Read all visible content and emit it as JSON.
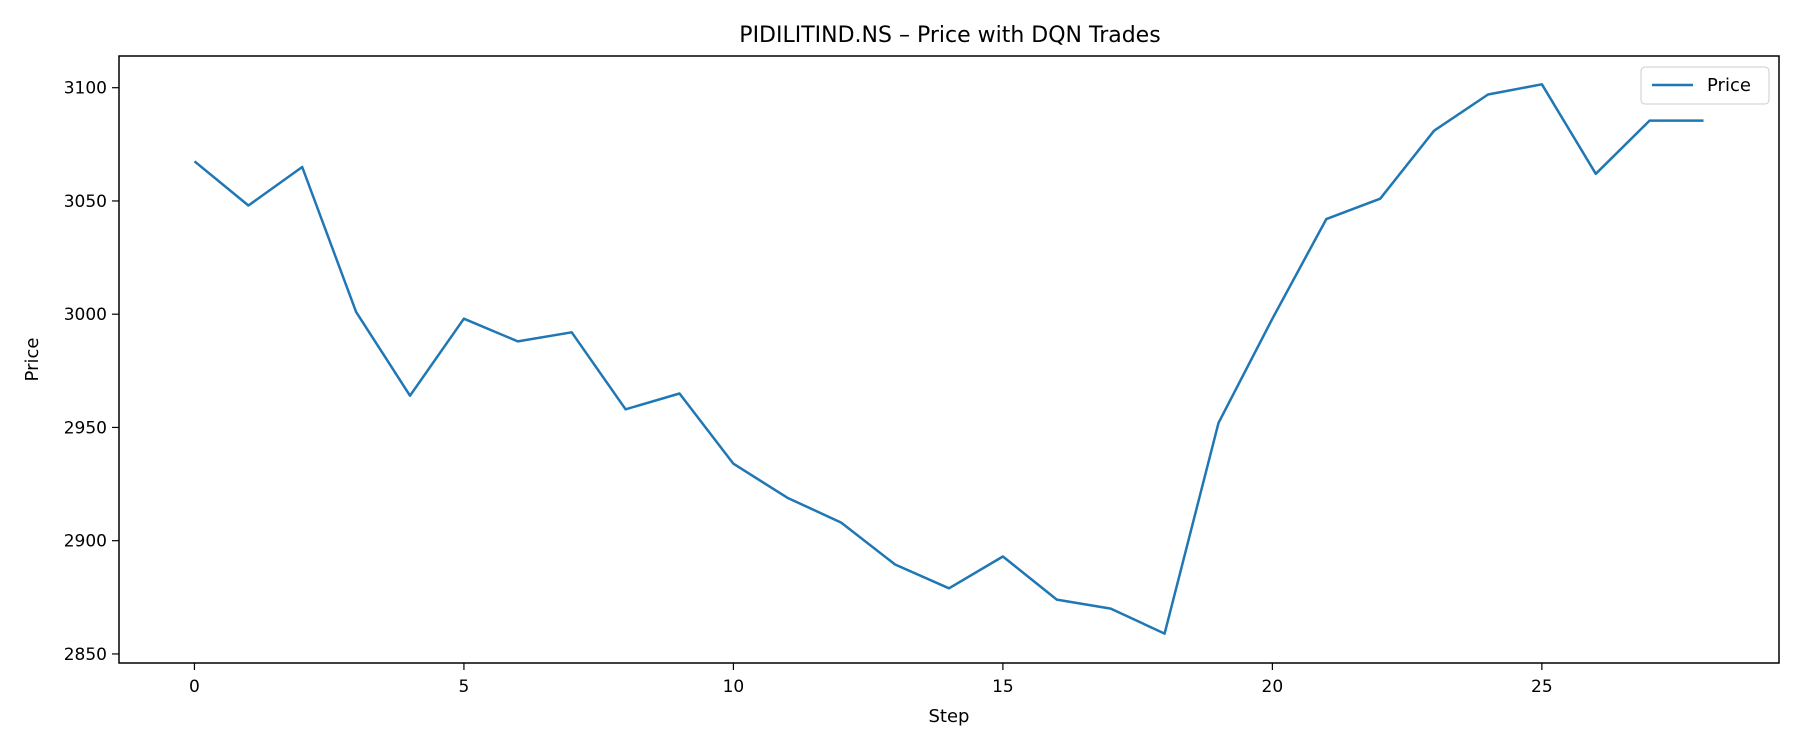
{
  "chart_data": {
    "type": "line",
    "title": "PIDILITIND.NS – Price with DQN Trades",
    "xlabel": "Step",
    "ylabel": "Price",
    "xlim": [
      -1.4,
      29.4
    ],
    "ylim": [
      2846,
      3114
    ],
    "xticks": [
      0,
      5,
      10,
      15,
      20,
      25
    ],
    "yticks": [
      2850,
      2900,
      2950,
      3000,
      3050,
      3100
    ],
    "grid": false,
    "legend_position": "top-right",
    "series": [
      {
        "name": "Price",
        "color": "#1f77b4",
        "x": [
          0,
          1,
          2,
          3,
          4,
          5,
          6,
          7,
          8,
          9,
          10,
          11,
          12,
          13,
          14,
          15,
          16,
          17,
          18,
          19,
          20,
          21,
          22,
          23,
          24,
          25,
          26,
          27,
          28
        ],
        "values": [
          3067.5,
          3048,
          3065,
          3001,
          2964,
          2998,
          2988,
          2992,
          2958,
          2965,
          2934,
          2919,
          2908,
          2889.5,
          2879,
          2893,
          2874,
          2870,
          2859,
          2952,
          2998,
          3042,
          3051,
          3081,
          3097,
          3101.5,
          3062,
          3085.5,
          3085.5
        ]
      }
    ]
  }
}
